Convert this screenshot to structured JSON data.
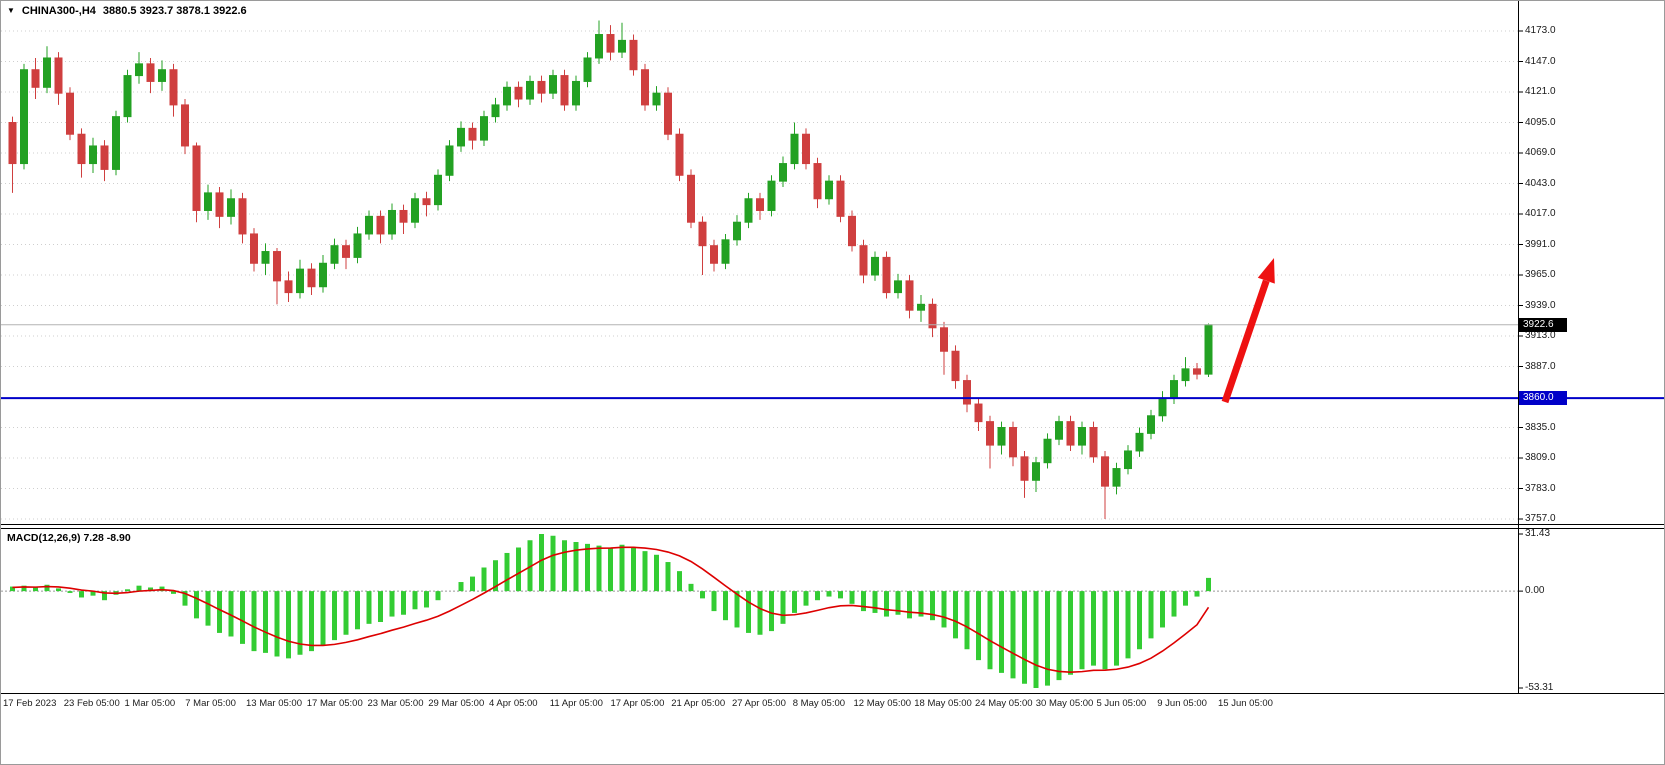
{
  "window": {
    "symbol_period": "CHINA300-,H4",
    "ohlc": "3880.5 3923.7 3878.1 3922.6"
  },
  "indicator": {
    "label": "MACD(12,26,9) 7.28 -8.90"
  },
  "price_axis": {
    "ticks": [
      "4173.0",
      "4147.0",
      "4121.0",
      "4095.0",
      "4069.0",
      "4043.0",
      "4017.0",
      "3991.0",
      "3965.0",
      "3939.0",
      "3913.0",
      "3887.0",
      "3835.0",
      "3809.0",
      "3783.0",
      "3757.0"
    ],
    "current_price_label": "3922.6",
    "hline_label": "3860.0"
  },
  "macd_axis": {
    "ticks": [
      "31.43",
      "0.00",
      "-53.31"
    ]
  },
  "time_axis": {
    "labels": [
      "17 Feb 2023",
      "23 Feb 05:00",
      "1 Mar 05:00",
      "7 Mar 05:00",
      "13 Mar 05:00",
      "17 Mar 05:00",
      "23 Mar 05:00",
      "29 Mar 05:00",
      "4 Apr 05:00",
      "11 Apr 05:00",
      "17 Apr 05:00",
      "21 Apr 05:00",
      "27 Apr 05:00",
      "8 May 05:00",
      "12 May 05:00",
      "18 May 05:00",
      "24 May 05:00",
      "30 May 05:00",
      "5 Jun 05:00",
      "9 Jun 05:00",
      "15 Jun 05:00"
    ]
  },
  "colors": {
    "bull": "#23a123",
    "bear": "#cf3f3f",
    "macd_hist": "#33cc33",
    "macd_signal": "#dd0000",
    "hline": "#0000c8",
    "grid": "#cfcfcf",
    "bid_line": "#b3b3b3",
    "badge_current_bg": "#000000",
    "badge_line_bg": "#0000c8",
    "arrow": "#ee1111",
    "panel_border": "#000000"
  },
  "chart_data": [
    {
      "type": "candlestick",
      "title": "CHINA300- H4",
      "last_bar": {
        "open": 3880.5,
        "high": 3923.7,
        "low": 3878.1,
        "close": 3922.6
      },
      "current_price": 3922.6,
      "horizontal_line": 3860.0,
      "ylim": [
        3748,
        4186
      ],
      "y_ticks": [
        4173,
        4147,
        4121,
        4095,
        4069,
        4043,
        4017,
        3991,
        3965,
        3939,
        3913,
        3887,
        3861,
        3835,
        3809,
        3783,
        3757
      ],
      "candles": [
        [
          4095,
          4100,
          4035,
          4060
        ],
        [
          4060,
          4145,
          4055,
          4140
        ],
        [
          4140,
          4150,
          4115,
          4125
        ],
        [
          4125,
          4160,
          4120,
          4150
        ],
        [
          4150,
          4155,
          4110,
          4120
        ],
        [
          4120,
          4125,
          4080,
          4085
        ],
        [
          4085,
          4090,
          4048,
          4060
        ],
        [
          4060,
          4082,
          4052,
          4075
        ],
        [
          4075,
          4080,
          4045,
          4055
        ],
        [
          4055,
          4105,
          4050,
          4100
        ],
        [
          4100,
          4140,
          4095,
          4135
        ],
        [
          4135,
          4155,
          4128,
          4145
        ],
        [
          4145,
          4150,
          4120,
          4130
        ],
        [
          4130,
          4148,
          4122,
          4140
        ],
        [
          4140,
          4145,
          4100,
          4110
        ],
        [
          4110,
          4115,
          4068,
          4075
        ],
        [
          4075,
          4078,
          4010,
          4020
        ],
        [
          4020,
          4042,
          4012,
          4035
        ],
        [
          4035,
          4040,
          4005,
          4015
        ],
        [
          4015,
          4038,
          4008,
          4030
        ],
        [
          4030,
          4035,
          3992,
          4000
        ],
        [
          4000,
          4005,
          3968,
          3975
        ],
        [
          3975,
          3992,
          3965,
          3985
        ],
        [
          3985,
          3988,
          3940,
          3960
        ],
        [
          3960,
          3968,
          3942,
          3950
        ],
        [
          3950,
          3978,
          3945,
          3970
        ],
        [
          3970,
          3975,
          3948,
          3955
        ],
        [
          3955,
          3982,
          3950,
          3975
        ],
        [
          3975,
          3996,
          3970,
          3990
        ],
        [
          3990,
          3995,
          3970,
          3980
        ],
        [
          3980,
          4006,
          3975,
          4000
        ],
        [
          4000,
          4020,
          3995,
          4015
        ],
        [
          4015,
          4020,
          3992,
          4000
        ],
        [
          4000,
          4026,
          3995,
          4020
        ],
        [
          4020,
          4025,
          4000,
          4010
        ],
        [
          4010,
          4035,
          4005,
          4030
        ],
        [
          4030,
          4036,
          4015,
          4025
        ],
        [
          4025,
          4055,
          4020,
          4050
        ],
        [
          4050,
          4080,
          4045,
          4075
        ],
        [
          4075,
          4096,
          4070,
          4090
        ],
        [
          4090,
          4095,
          4072,
          4080
        ],
        [
          4080,
          4105,
          4075,
          4100
        ],
        [
          4100,
          4116,
          4095,
          4110
        ],
        [
          4110,
          4130,
          4105,
          4125
        ],
        [
          4125,
          4130,
          4108,
          4115
        ],
        [
          4115,
          4135,
          4110,
          4130
        ],
        [
          4130,
          4135,
          4112,
          4120
        ],
        [
          4120,
          4140,
          4115,
          4135
        ],
        [
          4135,
          4140,
          4105,
          4110
        ],
        [
          4110,
          4135,
          4105,
          4130
        ],
        [
          4130,
          4155,
          4125,
          4150
        ],
        [
          4150,
          4182,
          4145,
          4170
        ],
        [
          4170,
          4178,
          4148,
          4155
        ],
        [
          4155,
          4180,
          4150,
          4165
        ],
        [
          4165,
          4170,
          4135,
          4140
        ],
        [
          4140,
          4145,
          4105,
          4110
        ],
        [
          4110,
          4126,
          4105,
          4120
        ],
        [
          4120,
          4125,
          4080,
          4085
        ],
        [
          4085,
          4090,
          4045,
          4050
        ],
        [
          4050,
          4055,
          4005,
          4010
        ],
        [
          4010,
          4015,
          3965,
          3990
        ],
        [
          3990,
          3995,
          3968,
          3975
        ],
        [
          3975,
          4000,
          3970,
          3995
        ],
        [
          3995,
          4016,
          3990,
          4010
        ],
        [
          4010,
          4035,
          4005,
          4030
        ],
        [
          4030,
          4035,
          4012,
          4020
        ],
        [
          4020,
          4050,
          4015,
          4045
        ],
        [
          4045,
          4066,
          4040,
          4060
        ],
        [
          4060,
          4095,
          4055,
          4085
        ],
        [
          4085,
          4090,
          4055,
          4060
        ],
        [
          4060,
          4065,
          4022,
          4030
        ],
        [
          4030,
          4050,
          4025,
          4045
        ],
        [
          4045,
          4050,
          4010,
          4015
        ],
        [
          4015,
          4020,
          3985,
          3990
        ],
        [
          3990,
          3995,
          3958,
          3965
        ],
        [
          3965,
          3985,
          3960,
          3980
        ],
        [
          3980,
          3985,
          3945,
          3950
        ],
        [
          3950,
          3966,
          3945,
          3960
        ],
        [
          3960,
          3965,
          3928,
          3935
        ],
        [
          3935,
          3948,
          3925,
          3940
        ],
        [
          3940,
          3945,
          3912,
          3920
        ],
        [
          3920,
          3925,
          3880,
          3900
        ],
        [
          3900,
          3905,
          3868,
          3875
        ],
        [
          3875,
          3880,
          3848,
          3855
        ],
        [
          3855,
          3860,
          3832,
          3840
        ],
        [
          3840,
          3845,
          3800,
          3820
        ],
        [
          3820,
          3840,
          3812,
          3835
        ],
        [
          3835,
          3840,
          3802,
          3810
        ],
        [
          3810,
          3815,
          3775,
          3790
        ],
        [
          3790,
          3810,
          3780,
          3805
        ],
        [
          3805,
          3830,
          3800,
          3825
        ],
        [
          3825,
          3845,
          3820,
          3840
        ],
        [
          3840,
          3845,
          3815,
          3820
        ],
        [
          3820,
          3840,
          3812,
          3835
        ],
        [
          3835,
          3840,
          3805,
          3810
        ],
        [
          3810,
          3815,
          3757,
          3785
        ],
        [
          3785,
          3805,
          3778,
          3800
        ],
        [
          3800,
          3820,
          3795,
          3815
        ],
        [
          3815,
          3835,
          3810,
          3830
        ],
        [
          3830,
          3850,
          3825,
          3845
        ],
        [
          3845,
          3866,
          3840,
          3860
        ],
        [
          3860,
          3880,
          3855,
          3875
        ],
        [
          3875,
          3895,
          3870,
          3885
        ],
        [
          3885,
          3890,
          3876,
          3880.5
        ],
        [
          3880.5,
          3923.7,
          3878.1,
          3922.6
        ]
      ]
    },
    {
      "type": "bar",
      "title": "MACD(12,26,9)",
      "current_values": [
        7.28,
        -8.9
      ],
      "y_ticks": [
        31.43,
        0.0,
        -53.31
      ],
      "ylim": [
        -56,
        34
      ],
      "histogram": [
        2.5,
        3.0,
        2.0,
        3.5,
        1.5,
        -1.0,
        -3.5,
        -2.5,
        -5.0,
        -2.0,
        1.0,
        3.0,
        2.0,
        2.5,
        -1.5,
        -8.0,
        -15.0,
        -19.0,
        -23.0,
        -25.0,
        -29.0,
        -33.0,
        -34.0,
        -36.0,
        -37.0,
        -35.0,
        -33.0,
        -30.0,
        -27.0,
        -24.0,
        -21.0,
        -18.0,
        -17.0,
        -14.0,
        -13.0,
        -10.0,
        -9.0,
        -5.0,
        0.0,
        5.0,
        8.0,
        13.0,
        17.0,
        21.0,
        24.0,
        28.0,
        31.4,
        30.5,
        28.0,
        27.0,
        26.0,
        25.0,
        24.0,
        25.5,
        24.0,
        22.0,
        20.0,
        16.0,
        11.0,
        4.0,
        -4.0,
        -11.0,
        -16.0,
        -20.0,
        -23.0,
        -24.0,
        -22.0,
        -18.0,
        -12.0,
        -8.0,
        -5.0,
        -3.0,
        -4.0,
        -7.0,
        -11.0,
        -12.0,
        -14.0,
        -13.0,
        -15.0,
        -14.0,
        -16.0,
        -20.0,
        -26.0,
        -32.0,
        -38.0,
        -43.0,
        -45.0,
        -48.0,
        -51.0,
        -53.3,
        -52.0,
        -49.0,
        -46.0,
        -43.0,
        -41.0,
        -43.0,
        -41.0,
        -37.0,
        -32.0,
        -26.0,
        -20.0,
        -14.0,
        -8.0,
        -3.0,
        7.28
      ],
      "signal": [
        2.0,
        2.3,
        2.2,
        2.5,
        2.3,
        1.6,
        0.6,
        0.0,
        -1.0,
        -1.2,
        -0.8,
        0.0,
        0.4,
        0.8,
        0.3,
        -1.3,
        -4.0,
        -7.0,
        -10.2,
        -13.2,
        -16.4,
        -19.7,
        -22.6,
        -25.3,
        -27.6,
        -29.1,
        -29.9,
        -29.9,
        -29.3,
        -28.2,
        -26.8,
        -25.0,
        -23.4,
        -21.5,
        -19.8,
        -17.8,
        -16.0,
        -13.8,
        -11.0,
        -7.8,
        -4.6,
        -1.1,
        2.5,
        6.2,
        9.8,
        13.4,
        17.0,
        19.7,
        21.4,
        22.5,
        23.2,
        23.6,
        23.7,
        24.1,
        24.1,
        23.7,
        22.9,
        21.5,
        19.4,
        16.3,
        12.2,
        7.6,
        2.9,
        -1.7,
        -6.0,
        -9.6,
        -12.1,
        -13.3,
        -13.0,
        -12.0,
        -10.6,
        -9.1,
        -8.1,
        -7.9,
        -8.5,
        -9.2,
        -10.2,
        -10.8,
        -11.6,
        -12.1,
        -12.9,
        -14.3,
        -16.6,
        -19.7,
        -23.4,
        -27.3,
        -30.8,
        -34.2,
        -37.6,
        -40.7,
        -43.0,
        -44.2,
        -44.6,
        -44.3,
        -43.6,
        -43.5,
        -43.0,
        -41.8,
        -39.8,
        -36.9,
        -33.0,
        -28.5,
        -23.6,
        -18.5,
        -8.9
      ]
    }
  ]
}
